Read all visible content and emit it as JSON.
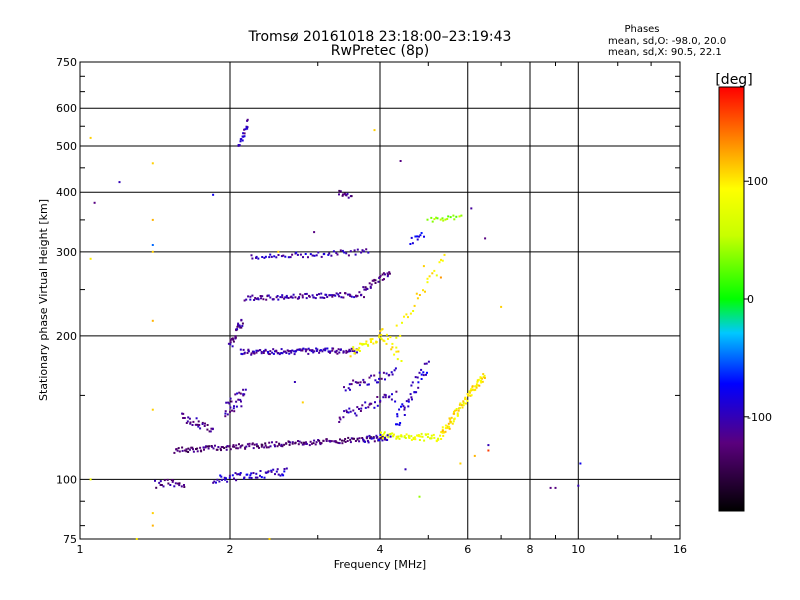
{
  "chart_data": {
    "type": "scatter",
    "title": "Tromsø 20161018 23:18:00–23:19:43",
    "subtitle": "RwPretec (8p)",
    "xlabel": "Frequency [MHz]",
    "ylabel": "Stationary phase Virtual Height [km]",
    "x_scale": "log",
    "y_scale": "log",
    "xlim": [
      1,
      16
    ],
    "ylim": [
      75,
      750
    ],
    "x_ticks": [
      1,
      2,
      4,
      6,
      8,
      10,
      16
    ],
    "x_tick_labels": [
      "1",
      "2",
      "4",
      "6",
      "8",
      "10",
      "16"
    ],
    "y_ticks": [
      75,
      100,
      200,
      300,
      400,
      500,
      600,
      750
    ],
    "y_tick_labels": [
      "75",
      "100",
      "200",
      "300",
      "400",
      "500",
      "600",
      "750"
    ],
    "grid": true,
    "phase_info": {
      "heading": "Phases",
      "line_o": "mean, sd,O: -98.0, 20.0",
      "line_x": "mean, sd,X:  90.5, 22.1"
    },
    "colorbar": {
      "label": "[deg]",
      "min": -180,
      "max": 180,
      "ticks": [
        100,
        0,
        -100
      ],
      "tick_labels": [
        "100",
        "0",
        "-100"
      ]
    },
    "traces": [
      {
        "f0": 1.42,
        "f1": 1.62,
        "h0": 98,
        "h1": 98,
        "n": 22,
        "phase": -120,
        "jitter": 2
      },
      {
        "f0": 1.85,
        "f1": 2.6,
        "h0": 100,
        "h1": 104,
        "n": 55,
        "phase": -95,
        "jitter": 2
      },
      {
        "f0": 1.55,
        "f1": 4.1,
        "h0": 115,
        "h1": 122,
        "n": 180,
        "phase": -125,
        "jitter": 1.5
      },
      {
        "f0": 4.0,
        "f1": 5.3,
        "h0": 124,
        "h1": 122,
        "n": 60,
        "phase": 80,
        "jitter": 2
      },
      {
        "f0": 3.7,
        "f1": 4.2,
        "h0": 121,
        "h1": 123,
        "n": 16,
        "phase": -90,
        "jitter": 2
      },
      {
        "f0": 5.3,
        "f1": 6.5,
        "h0": 123,
        "h1": 165,
        "n": 90,
        "phase": 100,
        "jitter": 3
      },
      {
        "f0": 1.6,
        "f1": 1.85,
        "h0": 135,
        "h1": 128,
        "n": 30,
        "phase": -115,
        "jitter": 3
      },
      {
        "f0": 1.95,
        "f1": 2.15,
        "h0": 140,
        "h1": 150,
        "n": 30,
        "phase": -110,
        "jitter": 6
      },
      {
        "f0": 2.0,
        "f1": 2.12,
        "h0": 190,
        "h1": 215,
        "n": 30,
        "phase": -115,
        "jitter": 5
      },
      {
        "f0": 2.1,
        "f1": 3.6,
        "h0": 185,
        "h1": 186,
        "n": 120,
        "phase": -105,
        "jitter": 2.5
      },
      {
        "f0": 3.5,
        "f1": 4.05,
        "h0": 185,
        "h1": 200,
        "n": 30,
        "phase": 90,
        "jitter": 4
      },
      {
        "f0": 2.15,
        "f1": 3.7,
        "h0": 240,
        "h1": 244,
        "n": 90,
        "phase": -110,
        "jitter": 3
      },
      {
        "f0": 3.7,
        "f1": 4.2,
        "h0": 250,
        "h1": 272,
        "n": 30,
        "phase": -120,
        "jitter": 4
      },
      {
        "f0": 2.2,
        "f1": 3.8,
        "h0": 292,
        "h1": 300,
        "n": 55,
        "phase": -100,
        "jitter": 4
      },
      {
        "f0": 3.3,
        "f1": 3.5,
        "h0": 400,
        "h1": 393,
        "n": 14,
        "phase": -120,
        "jitter": 5
      },
      {
        "f0": 2.08,
        "f1": 2.18,
        "h0": 500,
        "h1": 560,
        "n": 20,
        "phase": -105,
        "jitter": 10
      },
      {
        "f0": 3.3,
        "f1": 4.3,
        "h0": 135,
        "h1": 150,
        "n": 40,
        "phase": -105,
        "jitter": 4
      },
      {
        "f0": 3.4,
        "f1": 4.3,
        "h0": 155,
        "h1": 168,
        "n": 35,
        "phase": -110,
        "jitter": 4
      },
      {
        "f0": 4.3,
        "f1": 5.0,
        "h0": 130,
        "h1": 175,
        "n": 40,
        "phase": -90,
        "jitter": 6
      },
      {
        "f0": 5.0,
        "f1": 5.8,
        "h0": 350,
        "h1": 355,
        "n": 18,
        "phase": 40,
        "jitter": 4
      },
      {
        "f0": 4.6,
        "f1": 4.9,
        "h0": 315,
        "h1": 325,
        "n": 10,
        "phase": -80,
        "jitter": 5
      },
      {
        "f0": 4.3,
        "f1": 5.4,
        "h0": 200,
        "h1": 290,
        "n": 25,
        "phase": 95,
        "jitter": 8
      },
      {
        "f0": 4.0,
        "f1": 4.4,
        "h0": 205,
        "h1": 180,
        "n": 18,
        "phase": 95,
        "jitter": 6
      }
    ],
    "scatter": [
      [
        1.05,
        100,
        90
      ],
      [
        1.05,
        520,
        110
      ],
      [
        1.05,
        290,
        100
      ],
      [
        1.07,
        380,
        -120
      ],
      [
        1.4,
        460,
        110
      ],
      [
        1.4,
        350,
        120
      ],
      [
        1.4,
        310,
        -50
      ],
      [
        1.4,
        300,
        110
      ],
      [
        1.4,
        215,
        120
      ],
      [
        1.4,
        140,
        110
      ],
      [
        1.4,
        85,
        110
      ],
      [
        1.4,
        80,
        120
      ],
      [
        1.3,
        75,
        100
      ],
      [
        1.2,
        420,
        -100
      ],
      [
        1.85,
        395,
        -80
      ],
      [
        2.4,
        75,
        110
      ],
      [
        4.4,
        465,
        -120
      ],
      [
        3.9,
        540,
        110
      ],
      [
        4.5,
        105,
        -100
      ],
      [
        4.8,
        92,
        40
      ],
      [
        5.8,
        108,
        110
      ],
      [
        6.2,
        112,
        120
      ],
      [
        6.6,
        118,
        -100
      ],
      [
        7.0,
        230,
        110
      ],
      [
        6.5,
        320,
        -120
      ],
      [
        6.6,
        115,
        160
      ],
      [
        8.8,
        96,
        -120
      ],
      [
        9.0,
        96,
        -120
      ],
      [
        10.0,
        97,
        -100
      ],
      [
        10.1,
        108,
        -80
      ],
      [
        2.95,
        330,
        -120
      ],
      [
        2.5,
        300,
        110
      ],
      [
        2.7,
        160,
        -100
      ],
      [
        2.8,
        145,
        110
      ],
      [
        4.9,
        280,
        110
      ],
      [
        5.3,
        265,
        130
      ],
      [
        6.1,
        370,
        -110
      ]
    ]
  }
}
